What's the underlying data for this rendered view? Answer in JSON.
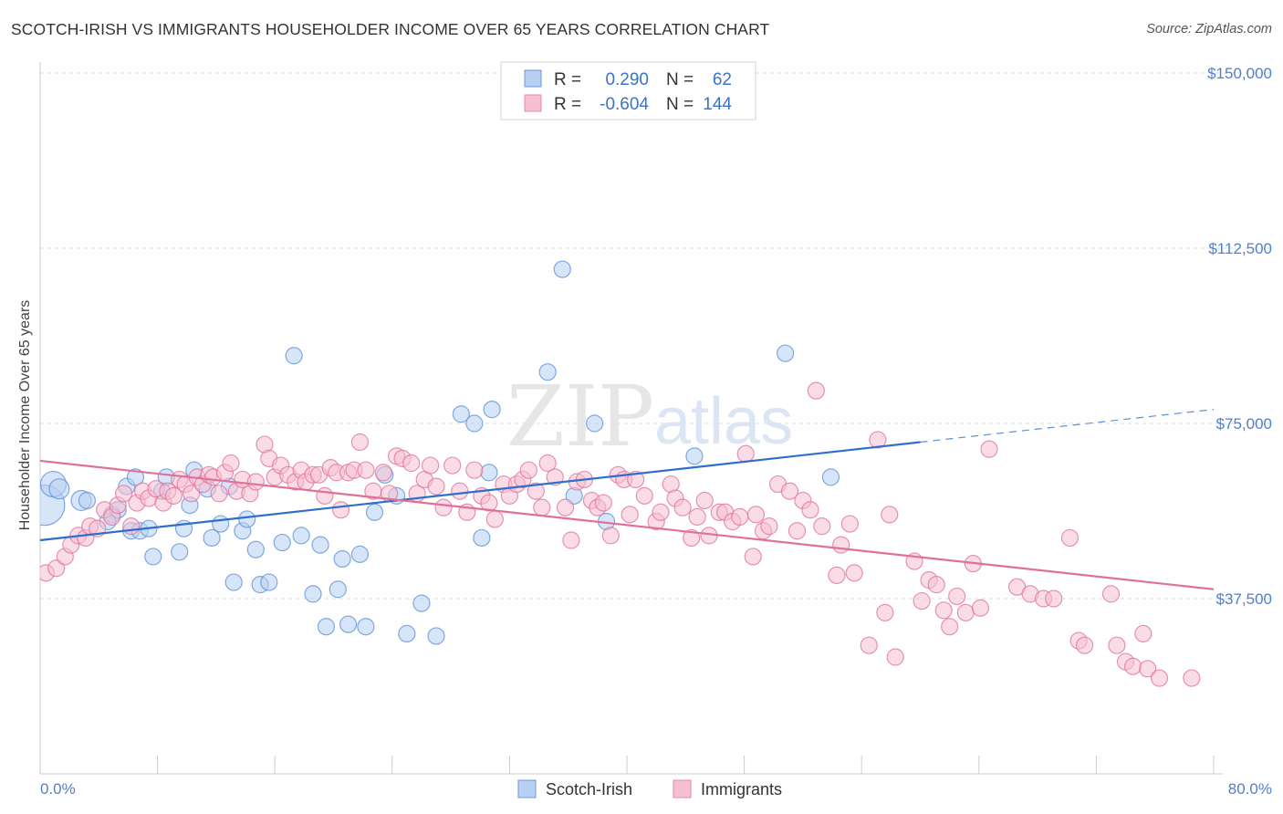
{
  "title": "SCOTCH-IRISH VS IMMIGRANTS HOUSEHOLDER INCOME OVER 65 YEARS CORRELATION CHART",
  "source": "Source: ZipAtlas.com",
  "watermark": {
    "zip": "ZIP",
    "atlas": "atlas"
  },
  "chart_data": {
    "type": "scatter",
    "title": "SCOTCH-IRISH VS IMMIGRANTS HOUSEHOLDER INCOME OVER 65 YEARS CORRELATION CHART",
    "ylabel": "Householder Income Over 65 years",
    "xlim": [
      0,
      80
    ],
    "ylim": [
      0,
      150000
    ],
    "y_ticks": [
      {
        "value": 150000,
        "label": "$150,000"
      },
      {
        "value": 112500,
        "label": "$112,500"
      },
      {
        "value": 75000,
        "label": "$75,000"
      },
      {
        "value": 37500,
        "label": "$37,500"
      }
    ],
    "x_tick_labels": {
      "min": "0.0%",
      "max": "80.0%"
    },
    "grid": "horizontal dashed",
    "legend_placement": "top-center",
    "stats": [
      {
        "r_label": "R =",
        "r": "0.290",
        "n_label": "N =",
        "n": "62"
      },
      {
        "r_label": "R =",
        "r": "-0.604",
        "n_label": "N =",
        "n": "144"
      }
    ],
    "series": [
      {
        "name": "Scotch-Irish",
        "color": "#5b8fd6",
        "fill": "#b7cff2",
        "trend": {
          "x0": 0,
          "y0": 50000,
          "x1": 60,
          "y1": 71000,
          "dash_to_x": 80,
          "dash_to_y": 78000
        },
        "points": [
          [
            0.3,
            57500,
            22
          ],
          [
            0.9,
            62000,
            14
          ],
          [
            1.3,
            61000,
            11
          ],
          [
            2.8,
            58500,
            11
          ],
          [
            3.2,
            58500,
            9
          ],
          [
            4.9,
            55500,
            9
          ],
          [
            4.6,
            54000,
            9
          ],
          [
            5.3,
            56500,
            9
          ],
          [
            5.9,
            61500,
            9
          ],
          [
            6.2,
            52000,
            9
          ],
          [
            6.5,
            63500,
            9
          ],
          [
            6.8,
            52000,
            9
          ],
          [
            7.4,
            52500,
            9
          ],
          [
            7.7,
            46500,
            9
          ],
          [
            8.3,
            60500,
            9
          ],
          [
            8.6,
            63500,
            9
          ],
          [
            9.5,
            47500,
            9
          ],
          [
            9.8,
            52500,
            9
          ],
          [
            10.2,
            57500,
            9
          ],
          [
            10.5,
            65000,
            9
          ],
          [
            11.4,
            61000,
            9
          ],
          [
            11.7,
            50500,
            9
          ],
          [
            12.3,
            53500,
            9
          ],
          [
            12.9,
            61500,
            9
          ],
          [
            13.2,
            41000,
            9
          ],
          [
            13.8,
            52000,
            9
          ],
          [
            14.1,
            54500,
            9
          ],
          [
            14.7,
            48000,
            9
          ],
          [
            15.0,
            40500,
            9
          ],
          [
            15.6,
            41000,
            9
          ],
          [
            16.5,
            49500,
            9
          ],
          [
            17.3,
            89500,
            9
          ],
          [
            17.8,
            51000,
            9
          ],
          [
            18.6,
            38500,
            9
          ],
          [
            19.1,
            49000,
            9
          ],
          [
            19.5,
            31500,
            9
          ],
          [
            20.3,
            39500,
            9
          ],
          [
            20.6,
            46000,
            9
          ],
          [
            21.0,
            32000,
            9
          ],
          [
            21.8,
            47000,
            9
          ],
          [
            22.2,
            31500,
            9
          ],
          [
            22.8,
            56000,
            9
          ],
          [
            23.5,
            64000,
            9
          ],
          [
            24.3,
            59500,
            9
          ],
          [
            25.0,
            30000,
            9
          ],
          [
            26.0,
            36500,
            9
          ],
          [
            27.0,
            29500,
            9
          ],
          [
            28.7,
            77000,
            9
          ],
          [
            29.6,
            75000,
            9
          ],
          [
            30.1,
            50500,
            9
          ],
          [
            30.6,
            64500,
            9
          ],
          [
            30.8,
            78000,
            9
          ],
          [
            34.6,
            86000,
            9
          ],
          [
            35.6,
            108000,
            9
          ],
          [
            36.4,
            59500,
            9
          ],
          [
            37.8,
            75000,
            9
          ],
          [
            38.6,
            54000,
            9
          ],
          [
            44.6,
            68000,
            9
          ],
          [
            50.8,
            90000,
            9
          ],
          [
            53.9,
            63500,
            9
          ]
        ]
      },
      {
        "name": "Immigrants",
        "color": "#e0709a",
        "fill": "#f5c0d2",
        "trend": {
          "x0": 0,
          "y0": 67000,
          "x1": 80,
          "y1": 39500
        },
        "points": [
          [
            0.4,
            43000
          ],
          [
            1.1,
            44000
          ],
          [
            1.7,
            46500
          ],
          [
            2.1,
            49000
          ],
          [
            2.6,
            51000
          ],
          [
            3.1,
            50500
          ],
          [
            3.4,
            53000
          ],
          [
            3.9,
            52500
          ],
          [
            4.4,
            56500
          ],
          [
            4.9,
            55000
          ],
          [
            5.3,
            57500
          ],
          [
            5.7,
            60000
          ],
          [
            6.2,
            53000
          ],
          [
            6.6,
            58000
          ],
          [
            7.0,
            60500
          ],
          [
            7.4,
            59000
          ],
          [
            7.9,
            61000
          ],
          [
            8.4,
            58000
          ],
          [
            8.7,
            60500
          ],
          [
            9.1,
            59500
          ],
          [
            9.5,
            63000
          ],
          [
            9.9,
            62000
          ],
          [
            10.3,
            60000
          ],
          [
            10.7,
            63500
          ],
          [
            11.1,
            62000
          ],
          [
            11.5,
            64000
          ],
          [
            11.8,
            63500
          ],
          [
            12.2,
            60000
          ],
          [
            12.6,
            64500
          ],
          [
            13.0,
            66500
          ],
          [
            13.4,
            60500
          ],
          [
            13.8,
            63000
          ],
          [
            14.3,
            60000
          ],
          [
            14.7,
            62500
          ],
          [
            15.3,
            70500
          ],
          [
            15.6,
            67500
          ],
          [
            16.0,
            63500
          ],
          [
            16.4,
            66000
          ],
          [
            16.9,
            64000
          ],
          [
            17.4,
            62500
          ],
          [
            17.8,
            65000
          ],
          [
            18.1,
            62500
          ],
          [
            18.6,
            64000
          ],
          [
            19.0,
            64000
          ],
          [
            19.4,
            59500
          ],
          [
            19.8,
            65500
          ],
          [
            20.2,
            64500
          ],
          [
            20.5,
            56500
          ],
          [
            21.0,
            64500
          ],
          [
            21.4,
            65000
          ],
          [
            21.8,
            71000
          ],
          [
            22.2,
            65000
          ],
          [
            22.7,
            60500
          ],
          [
            23.4,
            64500
          ],
          [
            23.8,
            60000
          ],
          [
            24.3,
            68000
          ],
          [
            24.7,
            67500
          ],
          [
            25.3,
            66500
          ],
          [
            25.7,
            60000
          ],
          [
            26.2,
            63000
          ],
          [
            26.6,
            66000
          ],
          [
            27.0,
            61500
          ],
          [
            27.5,
            57000
          ],
          [
            28.1,
            66000
          ],
          [
            28.6,
            60500
          ],
          [
            29.1,
            56000
          ],
          [
            29.6,
            65000
          ],
          [
            30.1,
            59500
          ],
          [
            30.6,
            58000
          ],
          [
            31.0,
            54500
          ],
          [
            31.6,
            62000
          ],
          [
            32.0,
            59500
          ],
          [
            32.5,
            62000
          ],
          [
            32.9,
            63000
          ],
          [
            33.3,
            65000
          ],
          [
            33.8,
            60500
          ],
          [
            34.2,
            57000
          ],
          [
            34.6,
            66500
          ],
          [
            35.1,
            63500
          ],
          [
            35.8,
            57000
          ],
          [
            36.2,
            50000
          ],
          [
            36.6,
            62500
          ],
          [
            37.1,
            63000
          ],
          [
            37.6,
            58500
          ],
          [
            38.0,
            57000
          ],
          [
            38.4,
            58000
          ],
          [
            38.9,
            51000
          ],
          [
            39.4,
            64000
          ],
          [
            39.8,
            63000
          ],
          [
            40.2,
            55500
          ],
          [
            40.6,
            63000
          ],
          [
            41.2,
            59500
          ],
          [
            42.0,
            54000
          ],
          [
            42.3,
            56000
          ],
          [
            43.0,
            62000
          ],
          [
            43.3,
            59000
          ],
          [
            43.8,
            57000
          ],
          [
            44.4,
            50500
          ],
          [
            44.8,
            55000
          ],
          [
            45.3,
            58500
          ],
          [
            45.6,
            51000
          ],
          [
            46.3,
            56000
          ],
          [
            46.7,
            56000
          ],
          [
            47.2,
            54000
          ],
          [
            47.7,
            55000
          ],
          [
            48.1,
            68500
          ],
          [
            48.6,
            46500
          ],
          [
            48.8,
            55500
          ],
          [
            49.3,
            52000
          ],
          [
            49.7,
            53000
          ],
          [
            50.3,
            62000
          ],
          [
            51.1,
            60500
          ],
          [
            51.6,
            52000
          ],
          [
            52.0,
            58500
          ],
          [
            52.5,
            56500
          ],
          [
            52.9,
            82000
          ],
          [
            53.3,
            53000
          ],
          [
            54.3,
            42500
          ],
          [
            54.6,
            49000
          ],
          [
            55.2,
            53500
          ],
          [
            55.5,
            43000
          ],
          [
            56.5,
            27500
          ],
          [
            57.1,
            71500
          ],
          [
            57.6,
            34500
          ],
          [
            57.9,
            55500
          ],
          [
            58.3,
            25000
          ],
          [
            59.6,
            45500
          ],
          [
            60.1,
            37000
          ],
          [
            60.6,
            41500
          ],
          [
            61.1,
            40500
          ],
          [
            61.6,
            35000
          ],
          [
            62.0,
            31500
          ],
          [
            62.5,
            38000
          ],
          [
            63.1,
            34500
          ],
          [
            63.6,
            45000
          ],
          [
            64.1,
            35500
          ],
          [
            64.7,
            69500
          ],
          [
            66.6,
            40000
          ],
          [
            67.5,
            38500
          ],
          [
            68.4,
            37500
          ],
          [
            69.1,
            37500
          ],
          [
            70.2,
            50500
          ],
          [
            70.8,
            28500
          ],
          [
            71.2,
            27500
          ],
          [
            73.0,
            38500
          ],
          [
            73.4,
            27500
          ],
          [
            74.0,
            24000
          ],
          [
            74.5,
            23000
          ],
          [
            75.2,
            30000
          ],
          [
            75.5,
            22500
          ],
          [
            76.3,
            20500
          ],
          [
            78.5,
            20500
          ]
        ]
      }
    ]
  }
}
